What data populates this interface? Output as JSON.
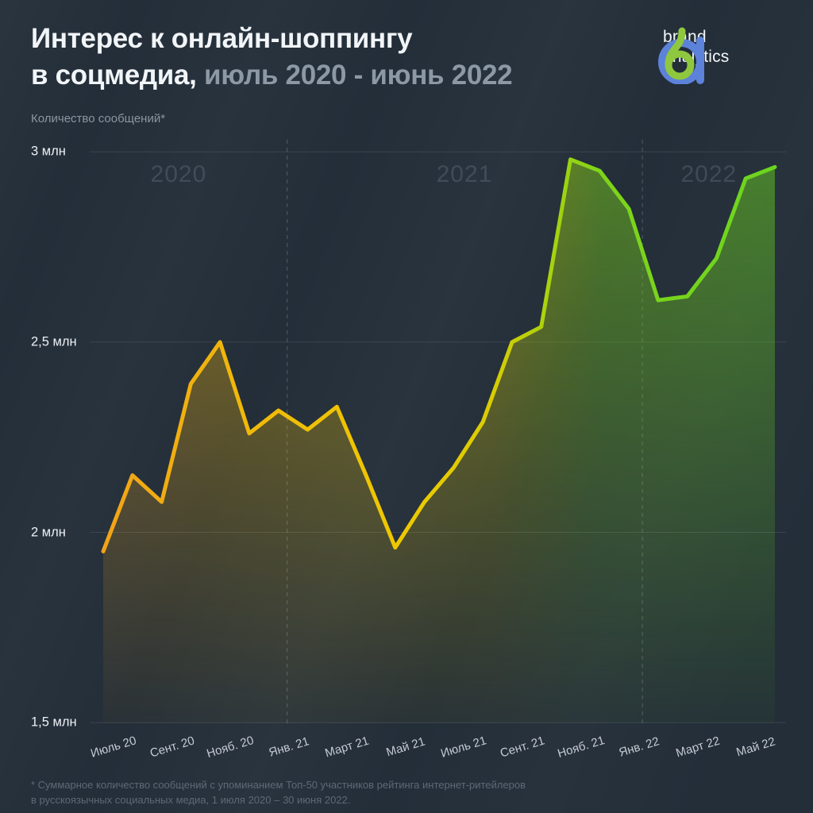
{
  "header": {
    "title_line1": "Интерес к онлайн-шоппингу",
    "title_line2_white": "в соцмедиа,",
    "title_line2_gray": " июль 2020 - июнь 2022"
  },
  "logo": {
    "text_line1": "brand",
    "text_line2": "analytics",
    "green": "#8FC73E",
    "blue": "#5C82DA"
  },
  "chart_data": {
    "type": "line",
    "title": "Интерес к онлайн-шоппингу в соцмедиа, июль 2020 - июнь 2022",
    "ylabel": "Количество сообщений*",
    "unit": "млн",
    "period": "июль 2020 - июнь 2022",
    "n_points": 24,
    "values": [
      1.95,
      2.15,
      2.08,
      2.39,
      2.5,
      2.26,
      2.32,
      2.27,
      2.33,
      2.15,
      1.96,
      2.08,
      2.17,
      2.29,
      2.5,
      2.54,
      2.98,
      2.95,
      2.85,
      2.61,
      2.62,
      2.72,
      2.93,
      2.96
    ],
    "x_tick_labels": [
      "Июль 20",
      "Сент. 20",
      "Нояб. 20",
      "Янв. 21",
      "Март 21",
      "Май 21",
      "Июль 21",
      "Сент. 21",
      "Нояб. 21",
      "Янв. 22",
      "Март 22",
      "Май 22"
    ],
    "x_tick_month_indices": [
      0,
      2,
      4,
      6,
      8,
      10,
      12,
      14,
      16,
      18,
      20,
      22
    ],
    "y_ticks": [
      {
        "label": "3 млн",
        "value": 3.0
      },
      {
        "label": "2,5 млн",
        "value": 2.5
      },
      {
        "label": "2 млн",
        "value": 2.0
      },
      {
        "label": "1,5 млн",
        "value": 1.5
      }
    ],
    "ylim": [
      1.5,
      3.05
    ],
    "grid": "horizontal",
    "year_labels": [
      {
        "text": "2020",
        "month_pos": 2.58
      },
      {
        "text": "2021",
        "month_pos": 12.37
      },
      {
        "text": "2022",
        "month_pos": 20.74
      }
    ],
    "year_boundary_month_indices": [
      6,
      18
    ],
    "line_gradient": [
      [
        "0",
        "#F2A318"
      ],
      [
        "0.20",
        "#F0B80A"
      ],
      [
        "0.45",
        "#EEC900"
      ],
      [
        "0.58",
        "#D9CC03"
      ],
      [
        "0.66",
        "#ABD20D"
      ],
      [
        "0.74",
        "#7FD41A"
      ],
      [
        "1",
        "#6BD51F"
      ]
    ],
    "colors": {
      "background": "#232E39",
      "gridline": "rgba(255,255,255,0.10)",
      "year_boundary": "rgba(255,255,255,0.22)"
    }
  },
  "footnote": {
    "line1": "* Суммарное количество сообщений с упоминанием Топ-50 участников рейтинга интернет-ритейлеров",
    "line2": "в русскоязычных социальных медиа, 1 июля 2020 – 30 июня 2022."
  }
}
